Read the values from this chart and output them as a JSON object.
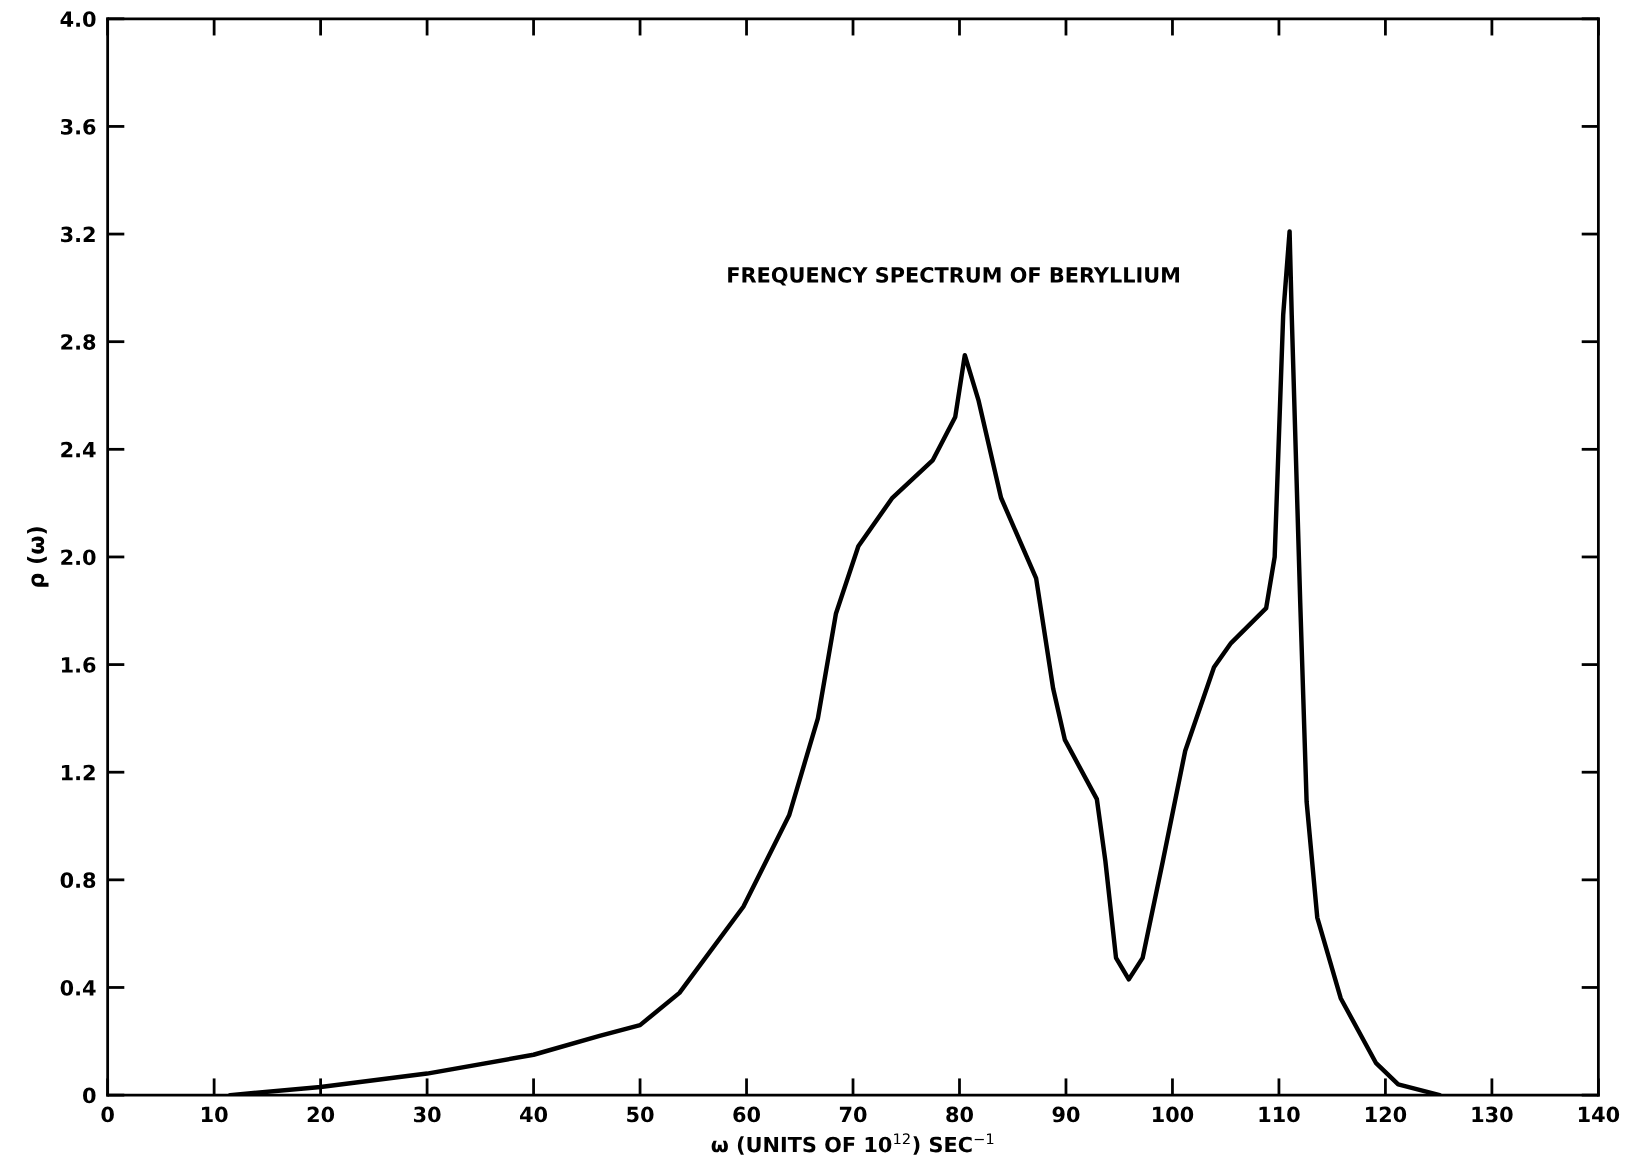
{
  "chart_data": {
    "type": "line",
    "title": "FREQUENCY SPECTRUM OF BERYLLIUM",
    "xlabel": "ω (UNITS OF 10$^{12}$) SEC$^{−1}$",
    "ylabel": "ρ (ω)",
    "x": [
      11.5,
      20,
      30,
      40,
      46.2,
      50,
      53.7,
      59.7,
      64.0,
      66.7,
      68.4,
      70.5,
      73.7,
      77.5,
      79.6,
      80.5,
      81.8,
      83.9,
      87.2,
      88.8,
      89.9,
      92.9,
      93.7,
      94.7,
      95.9,
      97.2,
      99.1,
      101.2,
      103.9,
      105.5,
      108.8,
      109.6,
      110.4,
      111.0,
      111.2,
      112.0,
      112.6,
      113.6,
      115.8,
      119.1,
      121.2,
      125.1
    ],
    "series": [
      {
        "color": "#000000",
        "values": [
          0,
          0.03,
          0.08,
          0.15,
          0.22,
          0.26,
          0.38,
          0.7,
          1.04,
          1.4,
          1.79,
          2.04,
          2.22,
          2.36,
          2.52,
          2.75,
          2.58,
          2.22,
          1.92,
          1.51,
          1.32,
          1.1,
          0.87,
          0.51,
          0.43,
          0.51,
          0.87,
          1.28,
          1.59,
          1.68,
          1.81,
          2.0,
          2.9,
          3.21,
          2.9,
          1.83,
          1.09,
          0.66,
          0.36,
          0.12,
          0.04,
          0
        ]
      }
    ],
    "xlim": [
      0,
      140
    ],
    "ylim": [
      0,
      4.0
    ],
    "xticks": [
      0,
      10,
      20,
      30,
      40,
      50,
      60,
      70,
      80,
      90,
      100,
      110,
      120,
      130,
      140
    ],
    "yticks": [
      0,
      0.4,
      0.8,
      1.2,
      1.6,
      {
        "value": 2.0,
        "label": "2.0"
      },
      2.4,
      2.8,
      3.2,
      3.6,
      {
        "value": 4.0,
        "label": "4.0"
      }
    ],
    "grid": false,
    "legend": false,
    "marker": "none",
    "line_style": "solid"
  }
}
